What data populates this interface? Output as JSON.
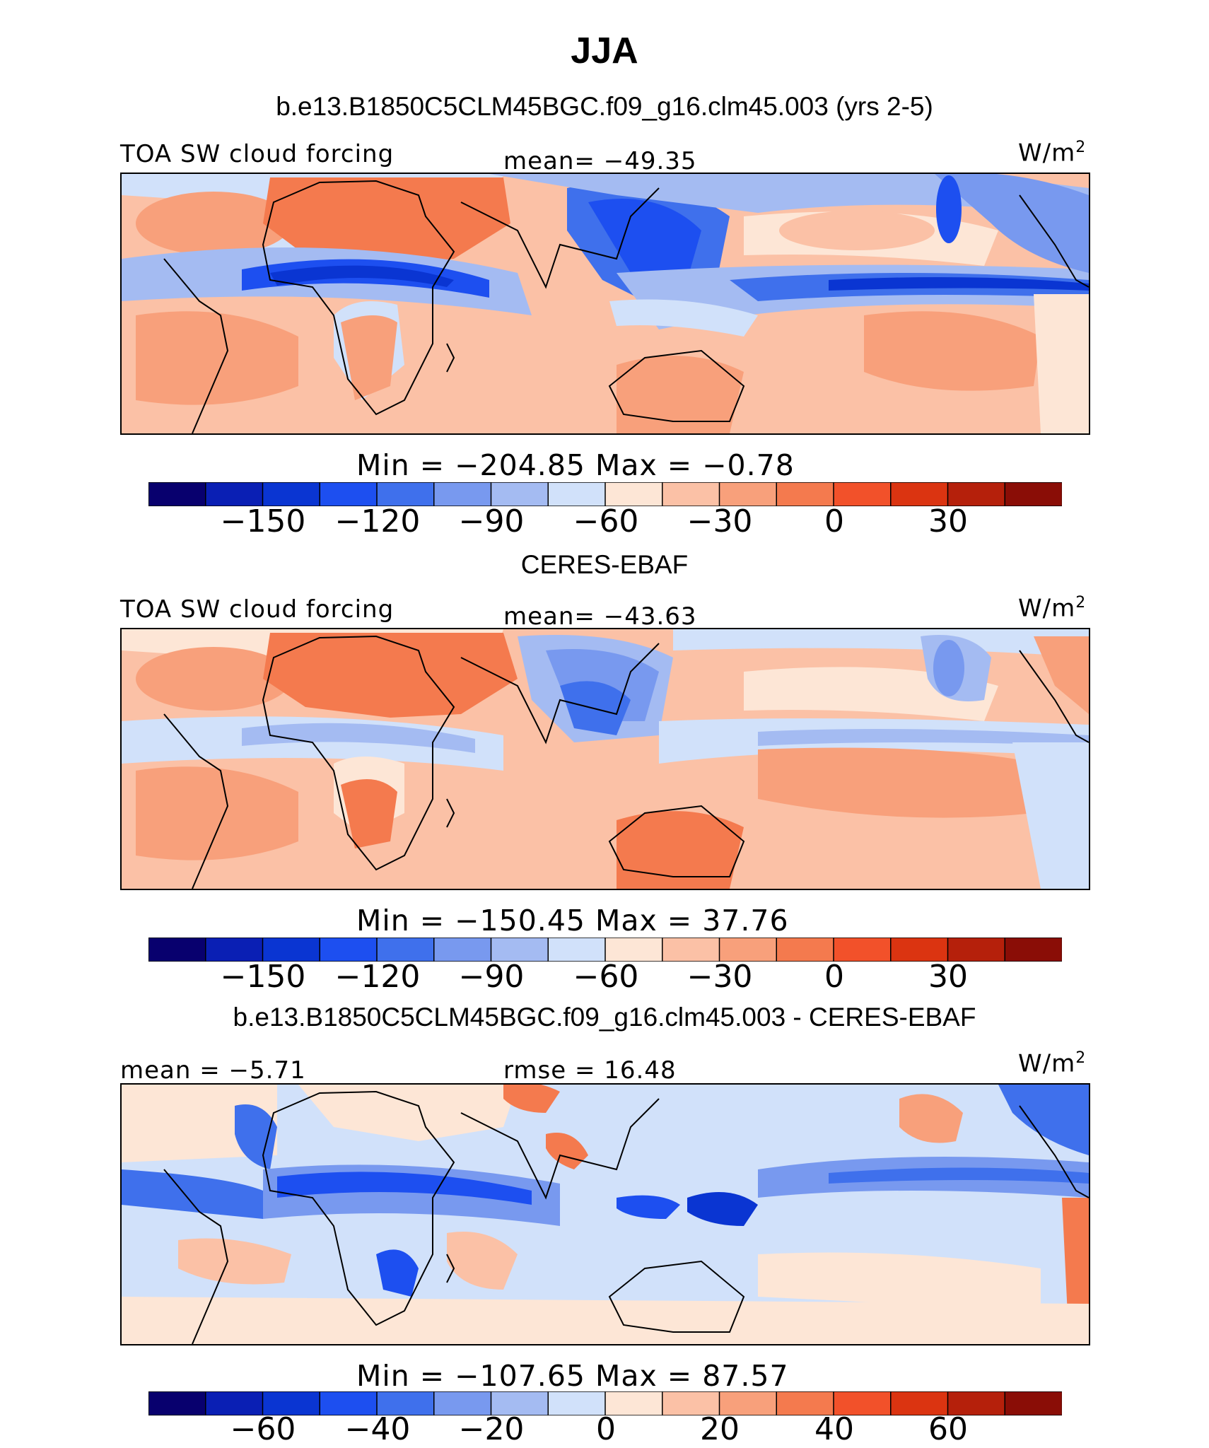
{
  "title": "JJA",
  "panels": [
    {
      "subtitle": "b.e13.B1850C5CLM45BGC.f09_g16.clm45.003 (yrs 2-5)",
      "left_label": "TOA SW cloud forcing",
      "center_label": "mean= −49.35",
      "units": "W/m",
      "units_sup": "2",
      "minmax": "Min = −204.85 Max = −0.78",
      "colorbar_ticks": [
        "−150",
        "−120",
        "−90",
        "−60",
        "−30",
        "0",
        "30"
      ],
      "mean": -49.35
    },
    {
      "subtitle": "CERES-EBAF",
      "left_label": "TOA SW cloud forcing",
      "center_label": "mean= −43.63",
      "units": "W/m",
      "units_sup": "2",
      "minmax": "Min = −150.45 Max = 37.76",
      "colorbar_ticks": [
        "−150",
        "−120",
        "−90",
        "−60",
        "−30",
        "0",
        "30"
      ],
      "mean": -43.63
    },
    {
      "subtitle": "b.e13.B1850C5CLM45BGC.f09_g16.clm45.003 - CERES-EBAF",
      "left_label": "mean = −5.71",
      "center_label": "rmse = 16.48",
      "units": "W/m",
      "units_sup": "2",
      "minmax": "Min = −107.65 Max = 87.57",
      "colorbar_ticks": [
        "−60",
        "−40",
        "−20",
        "0",
        "20",
        "40",
        "60"
      ],
      "mean": -5.71
    }
  ],
  "colors": {
    "palette": [
      "#08006e",
      "#0a1fb4",
      "#0a35d2",
      "#1d4ff0",
      "#3f70ec",
      "#7899ef",
      "#a4bbf2",
      "#d1e1fa",
      "#fde6d6",
      "#fbc1a6",
      "#f8a07b",
      "#f47a4e",
      "#f2512a",
      "#db3411",
      "#b5200b",
      "#8a0d06"
    ],
    "land_outline": "#000000"
  }
}
